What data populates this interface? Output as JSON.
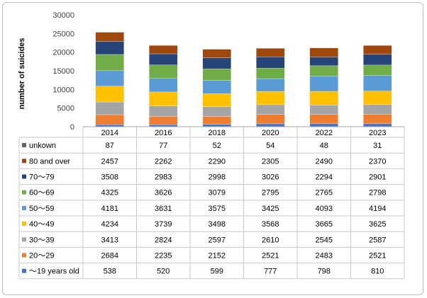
{
  "chart_data": {
    "type": "bar",
    "stacked": true,
    "ylabel": "number of suicides",
    "ylim": [
      0,
      30000
    ],
    "yticks": [
      "0",
      "5000",
      "10000",
      "15000",
      "20000",
      "25000",
      "30000"
    ],
    "categories": [
      "2014",
      "2016",
      "2018",
      "2020",
      "2022",
      "2023"
    ],
    "grid": false,
    "legend": "data-table",
    "series": [
      {
        "name": "～19 years old",
        "color": "#4472c4",
        "values": [
          538,
          520,
          599,
          777,
          798,
          810
        ],
        "labels": [
          "538",
          "520",
          "599",
          "777",
          "798",
          "810"
        ]
      },
      {
        "name": "20～29",
        "color": "#ed7d31",
        "values": [
          2684,
          2235,
          2152,
          2521,
          2483,
          2521
        ],
        "labels": [
          "2684",
          "2235",
          "2152",
          "2521",
          "2483",
          "2521"
        ]
      },
      {
        "name": "30～39",
        "color": "#a5a5a5",
        "values": [
          3413,
          2824,
          2597,
          2610,
          2545,
          2587
        ],
        "labels": [
          "3413",
          "2824",
          "2597",
          "2610",
          "2545",
          "2587"
        ]
      },
      {
        "name": "40～49",
        "color": "#ffc000",
        "values": [
          4234,
          3739,
          3498,
          3568,
          3665,
          3625
        ],
        "labels": [
          "4234",
          "3739",
          "3498",
          "3568",
          "3665",
          "3625"
        ]
      },
      {
        "name": "50～59",
        "color": "#5b9bd5",
        "values": [
          4181,
          3631,
          3575,
          3425,
          4093,
          4194
        ],
        "labels": [
          "4181",
          "3631",
          "3575",
          "3425",
          "4093",
          "4194"
        ]
      },
      {
        "name": "60～69",
        "color": "#70ad47",
        "values": [
          4325,
          3626,
          3079,
          2795,
          2765,
          2798
        ],
        "labels": [
          "4325",
          "3626",
          "3079",
          "2795",
          "2765",
          "2798"
        ]
      },
      {
        "name": "70～79",
        "color": "#264478",
        "values": [
          3508,
          2983,
          2998,
          3026,
          2294,
          2901
        ],
        "labels": [
          "3508",
          "2983",
          "2998",
          "3026",
          "2294",
          "2901"
        ]
      },
      {
        "name": "80 and over",
        "color": "#9e480e",
        "values": [
          2457,
          2262,
          2290,
          2305,
          2490,
          2370
        ],
        "labels": [
          "2457",
          "2262",
          "2290",
          "2305",
          "2490",
          "2370"
        ]
      },
      {
        "name": "unkown",
        "color": "#636363",
        "values": [
          87,
          77,
          52,
          54,
          48,
          31
        ],
        "labels": [
          "87",
          "77",
          "52",
          "54",
          "48",
          "31"
        ]
      }
    ]
  }
}
